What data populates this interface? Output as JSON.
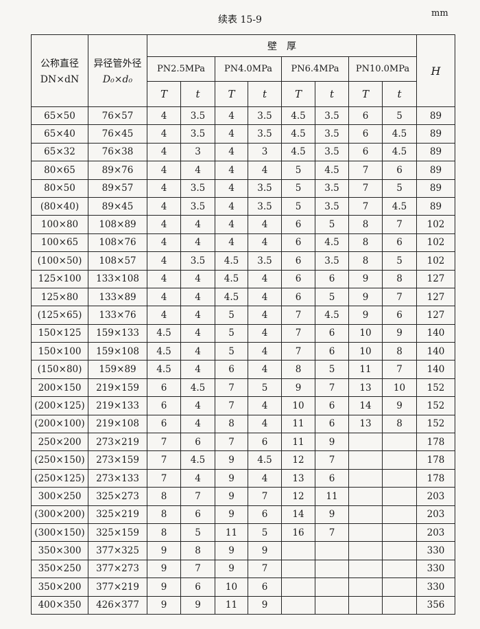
{
  "caption": "续表 15-9",
  "unit": "mm",
  "header": {
    "nominal": "公称直径",
    "nominal_sub": "DN×dN",
    "outer": "异径管外径",
    "outer_sub": "D₀×d₀",
    "wall": "壁　厚",
    "pressures": [
      "PN2.5MPa",
      "PN4.0MPa",
      "PN6.4MPa",
      "PN10.0MPa"
    ],
    "T": "T",
    "t": "t",
    "H": "H"
  },
  "rows": [
    [
      "65×50",
      "76×57",
      "4",
      "3.5",
      "4",
      "3.5",
      "4.5",
      "3.5",
      "6",
      "5",
      "89"
    ],
    [
      "65×40",
      "76×45",
      "4",
      "3.5",
      "4",
      "3.5",
      "4.5",
      "3.5",
      "6",
      "4.5",
      "89"
    ],
    [
      "65×32",
      "76×38",
      "4",
      "3",
      "4",
      "3",
      "4.5",
      "3.5",
      "6",
      "4.5",
      "89"
    ],
    [
      "80×65",
      "89×76",
      "4",
      "4",
      "4",
      "4",
      "5",
      "4.5",
      "7",
      "6",
      "89"
    ],
    [
      "80×50",
      "89×57",
      "4",
      "3.5",
      "4",
      "3.5",
      "5",
      "3.5",
      "7",
      "5",
      "89"
    ],
    [
      "(80×40)",
      "89×45",
      "4",
      "3.5",
      "4",
      "3.5",
      "5",
      "3.5",
      "7",
      "4.5",
      "89"
    ],
    [
      "100×80",
      "108×89",
      "4",
      "4",
      "4",
      "4",
      "6",
      "5",
      "8",
      "7",
      "102"
    ],
    [
      "100×65",
      "108×76",
      "4",
      "4",
      "4",
      "4",
      "6",
      "4.5",
      "8",
      "6",
      "102"
    ],
    [
      "(100×50)",
      "108×57",
      "4",
      "3.5",
      "4.5",
      "3.5",
      "6",
      "3.5",
      "8",
      "5",
      "102"
    ],
    [
      "125×100",
      "133×108",
      "4",
      "4",
      "4.5",
      "4",
      "6",
      "6",
      "9",
      "8",
      "127"
    ],
    [
      "125×80",
      "133×89",
      "4",
      "4",
      "4.5",
      "4",
      "6",
      "5",
      "9",
      "7",
      "127"
    ],
    [
      "(125×65)",
      "133×76",
      "4",
      "4",
      "5",
      "4",
      "7",
      "4.5",
      "9",
      "6",
      "127"
    ],
    [
      "150×125",
      "159×133",
      "4.5",
      "4",
      "5",
      "4",
      "7",
      "6",
      "10",
      "9",
      "140"
    ],
    [
      "150×100",
      "159×108",
      "4.5",
      "4",
      "5",
      "4",
      "7",
      "6",
      "10",
      "8",
      "140"
    ],
    [
      "(150×80)",
      "159×89",
      "4.5",
      "4",
      "6",
      "4",
      "8",
      "5",
      "11",
      "7",
      "140"
    ],
    [
      "200×150",
      "219×159",
      "6",
      "4.5",
      "7",
      "5",
      "9",
      "7",
      "13",
      "10",
      "152"
    ],
    [
      "(200×125)",
      "219×133",
      "6",
      "4",
      "7",
      "4",
      "10",
      "6",
      "14",
      "9",
      "152"
    ],
    [
      "(200×100)",
      "219×108",
      "6",
      "4",
      "8",
      "4",
      "11",
      "6",
      "13",
      "8",
      "152"
    ],
    [
      "250×200",
      "273×219",
      "7",
      "6",
      "7",
      "6",
      "11",
      "9",
      "",
      "",
      "178"
    ],
    [
      "(250×150)",
      "273×159",
      "7",
      "4.5",
      "9",
      "4.5",
      "12",
      "7",
      "",
      "",
      "178"
    ],
    [
      "(250×125)",
      "273×133",
      "7",
      "4",
      "9",
      "4",
      "13",
      "6",
      "",
      "",
      "178"
    ],
    [
      "300×250",
      "325×273",
      "8",
      "7",
      "9",
      "7",
      "12",
      "11",
      "",
      "",
      "203"
    ],
    [
      "(300×200)",
      "325×219",
      "8",
      "6",
      "9",
      "6",
      "14",
      "9",
      "",
      "",
      "203"
    ],
    [
      "(300×150)",
      "325×159",
      "8",
      "5",
      "11",
      "5",
      "16",
      "7",
      "",
      "",
      "203"
    ],
    [
      "350×300",
      "377×325",
      "9",
      "8",
      "9",
      "9",
      "",
      "",
      "",
      "",
      "330"
    ],
    [
      "350×250",
      "377×273",
      "9",
      "7",
      "9",
      "7",
      "",
      "",
      "",
      "",
      "330"
    ],
    [
      "350×200",
      "377×219",
      "9",
      "6",
      "10",
      "6",
      "",
      "",
      "",
      "",
      "330"
    ],
    [
      "400×350",
      "426×377",
      "9",
      "9",
      "11",
      "9",
      "",
      "",
      "",
      "",
      "356"
    ]
  ]
}
